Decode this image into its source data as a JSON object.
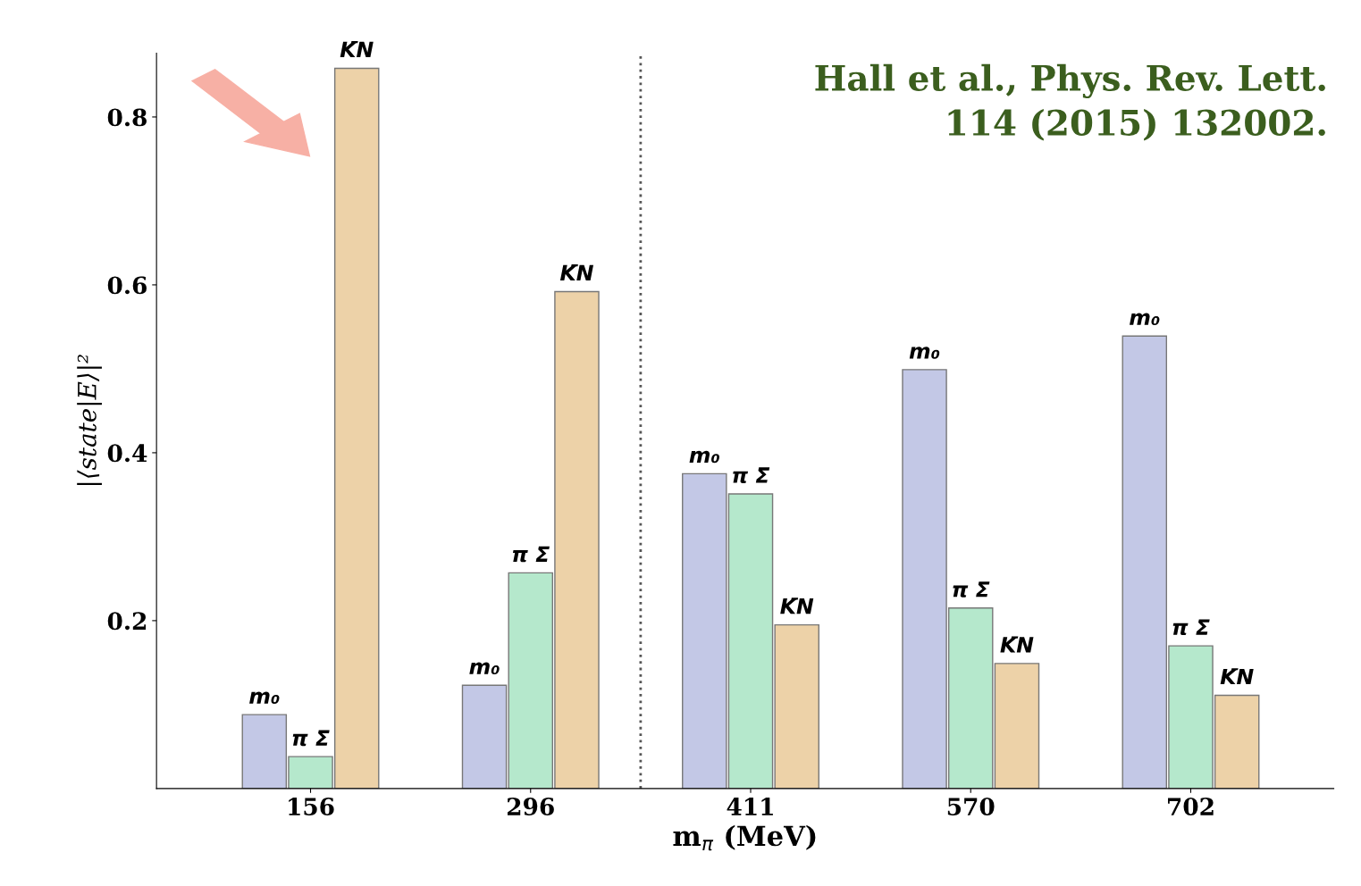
{
  "chart_data": {
    "type": "bar",
    "xlabel": "m$_{π}$ (MeV)",
    "ylabel": "|⟨state|E⟩|²",
    "categories": [
      "156",
      "296",
      "411",
      "570",
      "702"
    ],
    "series": [
      {
        "name": "m₀",
        "color": "#c3c8e6",
        "values": [
          0.088,
          0.123,
          0.375,
          0.499,
          0.539
        ]
      },
      {
        "name": "π Σ",
        "color": "#b5e8cc",
        "values": [
          0.038,
          0.257,
          0.351,
          0.215,
          0.17
        ]
      },
      {
        "name": "K̄N",
        "color": "#edd2a8",
        "values": [
          0.858,
          0.592,
          0.195,
          0.149,
          0.111
        ]
      }
    ],
    "ylim": [
      0,
      0.876
    ],
    "yticks": [
      0.2,
      0.4,
      0.6,
      0.8
    ],
    "grid": false,
    "legend": false,
    "annotations": [
      "Hall et al., Phys. Rev. Lett.\n114 (2015) 132002."
    ]
  }
}
